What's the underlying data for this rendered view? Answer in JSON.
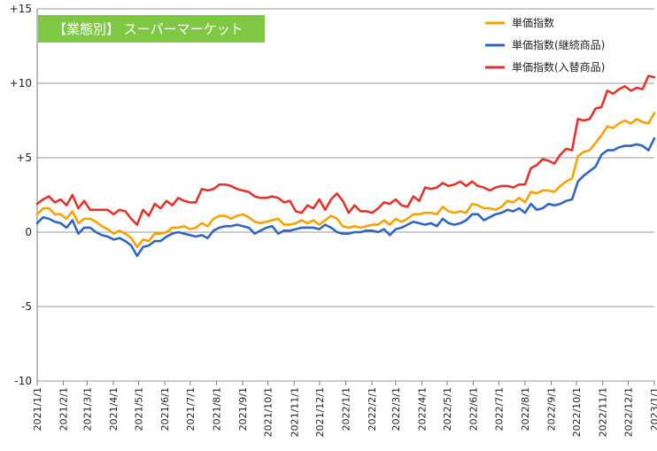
{
  "chart_data": {
    "type": "line",
    "title": "【業態別】 スーパーマーケット",
    "title_box_color": "#7fc843",
    "ylim": [
      -10,
      15
    ],
    "y_ticks": [
      {
        "value": 15,
        "label": "+15"
      },
      {
        "value": 10,
        "label": "+10"
      },
      {
        "value": 5,
        "label": "+5"
      },
      {
        "value": 0,
        "label": "0"
      },
      {
        "value": -5,
        "label": "-5"
      },
      {
        "value": -10,
        "label": "-10"
      }
    ],
    "gridlines": "horizontal",
    "legend_position": "top-right",
    "x_tick_labels": [
      "2021/1/1",
      "2021/2/1",
      "2021/3/1",
      "2021/4/1",
      "2021/5/1",
      "2021/6/1",
      "2021/7/1",
      "2021/8/1",
      "2021/9/1",
      "2021/10/1",
      "2021/11/1",
      "2021/12/1",
      "2022/1/1",
      "2022/2/1",
      "2022/3/1",
      "2022/4/1",
      "2022/5/1",
      "2022/6/1",
      "2022/7/1",
      "2022/8/1",
      "2022/9/1",
      "2022/10/1",
      "2022/11/1",
      "2022/12/1",
      "2023/1/1"
    ],
    "x_tick_weeks": [
      0,
      4.43,
      8.43,
      12.86,
      17.14,
      21.57,
      25.86,
      30.29,
      34.71,
      39,
      43.43,
      47.71,
      52.14,
      56.57,
      60.57,
      65,
      69.29,
      73.71,
      78,
      82.43,
      86.86,
      91.14,
      95.57,
      99.86,
      104.29
    ],
    "series": [
      {
        "name": "単価指数",
        "color": "#f5a200",
        "values": [
          1.2,
          1.6,
          1.6,
          1.2,
          1.2,
          0.9,
          1.4,
          0.6,
          0.9,
          0.9,
          0.7,
          0.4,
          0.2,
          -0.1,
          0.1,
          -0.1,
          -0.4,
          -1.0,
          -0.5,
          -0.6,
          -0.1,
          -0.1,
          0.0,
          0.3,
          0.3,
          0.4,
          0.2,
          0.3,
          0.6,
          0.4,
          0.9,
          1.1,
          1.1,
          0.9,
          1.1,
          1.2,
          1.0,
          0.7,
          0.6,
          0.7,
          0.8,
          0.9,
          0.5,
          0.5,
          0.6,
          0.8,
          0.6,
          0.8,
          0.5,
          0.8,
          1.1,
          0.9,
          0.4,
          0.3,
          0.4,
          0.3,
          0.4,
          0.5,
          0.5,
          0.8,
          0.5,
          0.9,
          0.7,
          0.9,
          1.2,
          1.2,
          1.3,
          1.3,
          1.2,
          1.7,
          1.4,
          1.3,
          1.4,
          1.3,
          1.9,
          1.8,
          1.6,
          1.6,
          1.5,
          1.7,
          2.1,
          2.0,
          2.3,
          2.0,
          2.7,
          2.6,
          2.8,
          2.8,
          2.7,
          3.1,
          3.4,
          3.6,
          5.1,
          5.4,
          5.5,
          6.0,
          6.5,
          7.1,
          7.0,
          7.3,
          7.5,
          7.3,
          7.6,
          7.4,
          7.3,
          8.0
        ]
      },
      {
        "name": "単価指数(継続商品)",
        "color": "#2f66c0",
        "values": [
          0.6,
          1.0,
          0.9,
          0.7,
          0.6,
          0.3,
          0.8,
          -0.1,
          0.3,
          0.3,
          0.0,
          -0.2,
          -0.3,
          -0.5,
          -0.4,
          -0.6,
          -0.9,
          -1.6,
          -1.0,
          -0.9,
          -0.6,
          -0.6,
          -0.3,
          -0.1,
          0.0,
          -0.1,
          -0.2,
          -0.3,
          -0.2,
          -0.4,
          0.1,
          0.3,
          0.4,
          0.4,
          0.5,
          0.4,
          0.3,
          -0.1,
          0.1,
          0.3,
          0.4,
          -0.1,
          0.1,
          0.1,
          0.2,
          0.3,
          0.3,
          0.3,
          0.2,
          0.5,
          0.3,
          0.0,
          -0.1,
          -0.1,
          0.0,
          0.0,
          0.1,
          0.1,
          0.0,
          0.2,
          -0.2,
          0.2,
          0.3,
          0.5,
          0.7,
          0.6,
          0.5,
          0.6,
          0.4,
          0.9,
          0.6,
          0.5,
          0.6,
          0.8,
          1.2,
          1.2,
          0.8,
          1.0,
          1.2,
          1.3,
          1.5,
          1.4,
          1.6,
          1.3,
          1.9,
          1.5,
          1.6,
          1.9,
          1.8,
          1.9,
          2.1,
          2.2,
          3.4,
          3.8,
          4.1,
          4.4,
          5.2,
          5.5,
          5.5,
          5.7,
          5.8,
          5.8,
          5.9,
          5.8,
          5.5,
          6.3
        ]
      },
      {
        "name": "単価指数(入替商品)",
        "color": "#e0342c",
        "values": [
          1.9,
          2.2,
          2.4,
          2.0,
          2.2,
          1.8,
          2.5,
          1.6,
          2.1,
          1.5,
          1.5,
          1.5,
          1.5,
          1.2,
          1.5,
          1.4,
          0.9,
          0.5,
          1.5,
          1.1,
          1.9,
          1.6,
          2.1,
          1.8,
          2.3,
          2.1,
          2.0,
          2.0,
          2.9,
          2.8,
          2.9,
          3.2,
          3.2,
          3.1,
          2.9,
          2.8,
          2.7,
          2.4,
          2.3,
          2.3,
          2.4,
          2.3,
          2.0,
          2.1,
          1.4,
          1.3,
          1.8,
          1.6,
          2.2,
          1.5,
          2.2,
          2.6,
          2.1,
          1.3,
          1.8,
          1.4,
          1.4,
          1.3,
          1.6,
          2.0,
          1.9,
          2.2,
          1.8,
          1.7,
          2.4,
          2.1,
          3.0,
          2.9,
          3.0,
          3.3,
          3.1,
          3.2,
          3.4,
          3.1,
          3.4,
          3.1,
          3.0,
          2.8,
          3.0,
          3.1,
          3.1,
          3.0,
          3.2,
          3.2,
          4.3,
          4.5,
          4.9,
          4.8,
          4.6,
          5.2,
          5.6,
          5.5,
          7.6,
          7.5,
          7.6,
          8.3,
          8.4,
          9.5,
          9.3,
          9.6,
          9.8,
          9.5,
          9.7,
          9.6,
          10.5,
          10.4
        ]
      }
    ]
  }
}
